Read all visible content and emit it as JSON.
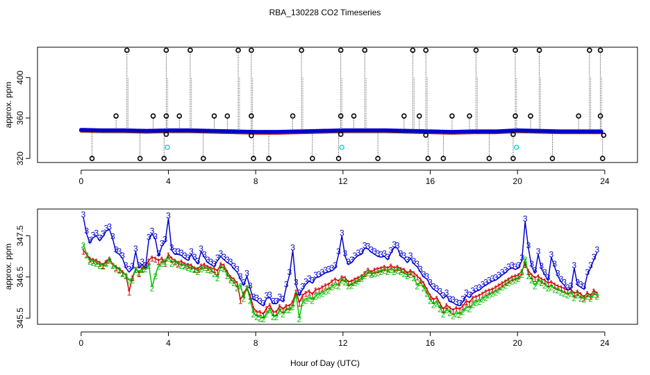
{
  "title": "RBA_130228  CO2 Timeseries",
  "xlabel": "Hour of Day (UTC)",
  "colors": {
    "s1": "#d40000",
    "s2": "#00c000",
    "s3": "#0000d0",
    "outlier": "#000000",
    "flag": "#00cccc"
  },
  "chart_data": [
    {
      "type": "scatter",
      "panel": "top",
      "ylabel": "approx. ppm",
      "xlim": [
        -2,
        25.5
      ],
      "ylim": [
        316,
        430
      ],
      "xticks": [
        0,
        4,
        8,
        12,
        16,
        20,
        24
      ],
      "yticks": [
        320,
        360,
        400
      ],
      "baseline": {
        "x": [
          0,
          1,
          2,
          3,
          4,
          5,
          6,
          7,
          8,
          9,
          10,
          11,
          12,
          13,
          14,
          15,
          16,
          17,
          18,
          19,
          20,
          21,
          22,
          23,
          24
        ],
        "y": [
          347.5,
          347,
          347,
          346.5,
          347,
          347,
          346.5,
          346,
          345.5,
          345.5,
          346,
          346.5,
          347,
          347,
          347,
          346.5,
          346,
          345.5,
          346,
          346,
          347,
          346.5,
          346,
          346,
          346
        ]
      },
      "outliers_high": [
        2.1,
        3.9,
        5.0,
        7.2,
        7.8,
        10.1,
        11.9,
        13.0,
        15.2,
        15.8,
        18.1,
        19.9,
        21.0,
        23.3,
        23.8
      ],
      "outliers_low": [
        0.5,
        2.7,
        3.8,
        5.6,
        7.9,
        8.6,
        10.6,
        11.8,
        13.6,
        15.9,
        16.6,
        18.7,
        19.8,
        21.6,
        23.9
      ],
      "outliers_mid": [
        1.6,
        3.3,
        3.9,
        4.5,
        6.1,
        6.7,
        7.8,
        9.7,
        11.9,
        12.5,
        14.8,
        15.5,
        17.0,
        17.8,
        19.9,
        20.6,
        22.8,
        23.8
      ],
      "flagged": [
        {
          "x": 3.95,
          "y": 331
        },
        {
          "x": 11.95,
          "y": 331
        },
        {
          "x": 19.95,
          "y": 331
        }
      ]
    },
    {
      "type": "line",
      "panel": "bottom",
      "ylabel": "approx. ppm",
      "xlim": [
        -2,
        25.5
      ],
      "ylim": [
        345.35,
        348.15
      ],
      "xticks": [
        0,
        4,
        8,
        12,
        16,
        20,
        24
      ],
      "yticks": [
        345.5,
        346.5,
        347.5
      ],
      "x": [
        0.1,
        0.25,
        0.4,
        0.55,
        0.7,
        0.85,
        1.0,
        1.15,
        1.3,
        1.45,
        1.6,
        1.75,
        1.9,
        2.05,
        2.2,
        2.35,
        2.5,
        2.65,
        2.8,
        2.95,
        3.1,
        3.25,
        3.4,
        3.55,
        3.7,
        3.85,
        4.0,
        4.15,
        4.3,
        4.45,
        4.6,
        4.75,
        4.9,
        5.05,
        5.2,
        5.35,
        5.5,
        5.65,
        5.8,
        5.95,
        6.1,
        6.25,
        6.4,
        6.55,
        6.7,
        6.85,
        7.0,
        7.15,
        7.3,
        7.45,
        7.6,
        7.75,
        7.9,
        8.05,
        8.2,
        8.35,
        8.5,
        8.65,
        8.8,
        8.95,
        9.1,
        9.25,
        9.4,
        9.55,
        9.7,
        9.85,
        10.0,
        10.15,
        10.3,
        10.45,
        10.6,
        10.75,
        10.9,
        11.05,
        11.2,
        11.35,
        11.5,
        11.65,
        11.8,
        11.95,
        12.1,
        12.25,
        12.4,
        12.55,
        12.7,
        12.85,
        13.0,
        13.15,
        13.3,
        13.45,
        13.6,
        13.75,
        13.9,
        14.05,
        14.2,
        14.35,
        14.5,
        14.65,
        14.8,
        14.95,
        15.1,
        15.25,
        15.4,
        15.55,
        15.7,
        15.85,
        16.0,
        16.15,
        16.3,
        16.45,
        16.6,
        16.75,
        16.9,
        17.05,
        17.2,
        17.35,
        17.5,
        17.65,
        17.8,
        17.95,
        18.1,
        18.25,
        18.4,
        18.55,
        18.7,
        18.85,
        19.0,
        19.15,
        19.3,
        19.45,
        19.6,
        19.75,
        19.9,
        20.05,
        20.2,
        20.35,
        20.5,
        20.65,
        20.8,
        20.95,
        21.1,
        21.25,
        21.4,
        21.55,
        21.7,
        21.85,
        22.0,
        22.15,
        22.3,
        22.45,
        22.6,
        22.75,
        22.9,
        23.05,
        23.2,
        23.35,
        23.5,
        23.65
      ],
      "series": [
        {
          "name": "1",
          "values": [
            347.15,
            347.05,
            346.95,
            346.92,
            346.9,
            346.85,
            346.8,
            346.88,
            346.95,
            346.8,
            346.75,
            346.7,
            346.62,
            346.55,
            346.15,
            346.5,
            346.7,
            346.6,
            346.72,
            346.78,
            346.9,
            346.98,
            346.95,
            346.9,
            346.95,
            346.85,
            347.05,
            346.95,
            346.9,
            346.85,
            346.88,
            346.82,
            346.8,
            346.78,
            346.72,
            346.7,
            346.78,
            346.8,
            346.75,
            346.72,
            346.7,
            346.65,
            346.82,
            346.78,
            346.62,
            346.5,
            346.45,
            346.35,
            345.95,
            346.1,
            346.25,
            346.05,
            345.75,
            345.65,
            345.65,
            345.6,
            345.75,
            345.82,
            345.65,
            345.65,
            345.8,
            345.72,
            345.8,
            345.8,
            345.9,
            346.15,
            345.88,
            346.05,
            346.12,
            346.15,
            346.08,
            346.2,
            346.2,
            346.25,
            346.3,
            346.32,
            346.4,
            346.45,
            346.4,
            346.5,
            346.48,
            346.38,
            346.4,
            346.45,
            346.48,
            346.52,
            346.6,
            346.68,
            346.62,
            346.68,
            346.7,
            346.72,
            346.75,
            346.72,
            346.78,
            346.72,
            346.75,
            346.7,
            346.68,
            346.6,
            346.65,
            346.6,
            346.52,
            346.45,
            346.35,
            346.2,
            346.05,
            345.95,
            346.0,
            345.85,
            345.72,
            345.82,
            345.75,
            345.7,
            345.75,
            345.72,
            345.8,
            345.92,
            345.88,
            346.0,
            346.02,
            346.05,
            346.1,
            346.15,
            346.18,
            346.2,
            346.25,
            346.3,
            346.35,
            346.4,
            346.45,
            346.5,
            346.52,
            346.55,
            346.65,
            346.82,
            346.65,
            346.55,
            346.48,
            346.52,
            346.45,
            346.42,
            346.35,
            346.38,
            346.32,
            346.28,
            346.25,
            346.22,
            346.18,
            346.2,
            346.1,
            346.15,
            346.08,
            346.02,
            346.12,
            346.05,
            346.18,
            346.1
          ]
        },
        {
          "name": "2",
          "values": [
            347.3,
            347.05,
            346.9,
            346.88,
            346.85,
            346.8,
            346.78,
            346.85,
            346.92,
            346.8,
            346.72,
            346.68,
            346.6,
            346.55,
            346.42,
            346.45,
            346.7,
            346.62,
            346.7,
            346.72,
            346.8,
            346.25,
            346.55,
            346.78,
            346.85,
            346.9,
            346.98,
            346.85,
            346.88,
            346.82,
            346.8,
            346.78,
            346.75,
            346.72,
            346.7,
            346.65,
            346.72,
            346.75,
            346.7,
            346.68,
            346.6,
            346.5,
            346.75,
            346.72,
            346.55,
            346.45,
            346.38,
            346.25,
            346.3,
            346.0,
            346.25,
            345.95,
            345.62,
            345.55,
            345.52,
            345.5,
            345.62,
            345.72,
            345.55,
            345.55,
            345.7,
            345.62,
            345.72,
            345.72,
            345.8,
            346.08,
            345.5,
            345.9,
            345.95,
            346.0,
            345.95,
            346.05,
            346.08,
            346.12,
            346.18,
            346.2,
            346.28,
            346.32,
            346.3,
            346.45,
            346.4,
            346.3,
            346.32,
            346.38,
            346.42,
            346.48,
            346.55,
            346.62,
            346.58,
            346.6,
            346.62,
            346.65,
            346.68,
            346.65,
            346.7,
            346.65,
            346.68,
            346.65,
            346.6,
            346.55,
            346.58,
            346.5,
            346.3,
            346.38,
            346.25,
            346.12,
            345.95,
            345.85,
            345.88,
            345.75,
            345.62,
            345.72,
            345.65,
            345.58,
            345.62,
            345.6,
            345.68,
            345.78,
            345.75,
            345.85,
            345.9,
            345.92,
            345.98,
            346.02,
            346.08,
            346.12,
            346.15,
            346.2,
            346.28,
            346.32,
            346.38,
            346.42,
            346.45,
            346.48,
            346.58,
            346.95,
            346.55,
            346.45,
            346.3,
            346.42,
            346.38,
            346.32,
            346.25,
            346.28,
            346.22,
            346.2,
            346.15,
            346.12,
            346.08,
            346.12,
            346.02,
            346.08,
            346.0,
            345.98,
            346.05,
            346.0,
            346.1,
            346.05
          ]
        },
        {
          "name": "3",
          "values": [
            347.95,
            347.55,
            347.32,
            347.45,
            347.5,
            347.38,
            347.48,
            347.62,
            347.65,
            347.42,
            347.1,
            347.05,
            346.95,
            346.72,
            346.62,
            346.7,
            347.12,
            346.72,
            346.8,
            346.72,
            347.4,
            347.55,
            347.42,
            347.0,
            347.25,
            347.35,
            347.92,
            347.15,
            347.05,
            347.05,
            347.02,
            346.95,
            346.9,
            347.05,
            346.92,
            346.82,
            347.12,
            346.98,
            346.85,
            346.8,
            346.75,
            346.9,
            347.0,
            346.92,
            346.85,
            346.8,
            346.7,
            346.62,
            346.45,
            346.3,
            346.52,
            346.22,
            345.95,
            345.92,
            345.85,
            345.8,
            345.98,
            346.0,
            345.85,
            345.85,
            345.95,
            345.9,
            346.25,
            346.55,
            347.15,
            346.3,
            346.05,
            346.2,
            346.32,
            346.4,
            346.35,
            346.48,
            346.5,
            346.55,
            346.6,
            346.62,
            346.65,
            346.72,
            347.05,
            347.5,
            347.0,
            346.8,
            346.85,
            346.95,
            347.02,
            347.05,
            347.2,
            347.18,
            347.1,
            347.05,
            347.0,
            346.98,
            347.0,
            346.92,
            347.08,
            347.22,
            347.2,
            347.0,
            346.95,
            346.85,
            346.95,
            346.82,
            346.75,
            346.62,
            346.5,
            346.45,
            346.3,
            346.2,
            346.15,
            346.08,
            345.98,
            346.05,
            345.9,
            345.88,
            345.82,
            345.8,
            345.9,
            346.05,
            346.0,
            346.1,
            346.15,
            346.18,
            346.25,
            346.3,
            346.35,
            346.4,
            346.42,
            346.48,
            346.55,
            346.6,
            346.68,
            346.72,
            346.68,
            346.72,
            346.9,
            347.85,
            347.2,
            346.75,
            346.6,
            347.05,
            346.7,
            346.55,
            346.42,
            346.98,
            346.75,
            346.52,
            346.38,
            346.3,
            346.18,
            346.22,
            346.72,
            346.3,
            346.25,
            346.2,
            346.55,
            346.72,
            346.92,
            347.1
          ]
        }
      ]
    }
  ]
}
